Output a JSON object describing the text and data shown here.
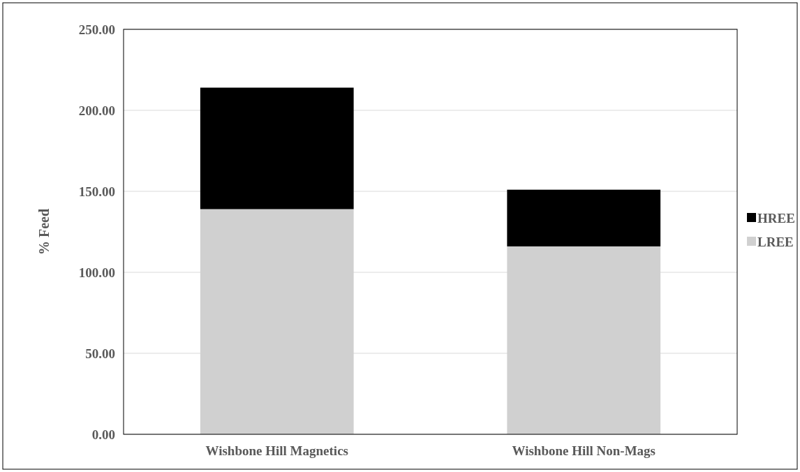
{
  "chart_data": {
    "type": "bar",
    "ylabel": "% Feed",
    "categories": [
      "Wishbone Hill Magnetics",
      "Wishbone Hill Non-Mags"
    ],
    "stacked": true,
    "series": [
      {
        "name": "LREE",
        "color": "#d0d0d0",
        "values": [
          139,
          116
        ]
      },
      {
        "name": "HREE",
        "color": "#000000",
        "values": [
          75,
          35
        ]
      }
    ],
    "ylim": [
      0,
      250
    ],
    "yticks": [
      {
        "value": 0,
        "label": "0.00"
      },
      {
        "value": 50,
        "label": "50.00"
      },
      {
        "value": 100,
        "label": "100.00"
      },
      {
        "value": 150,
        "label": "150.00"
      },
      {
        "value": 200,
        "label": "200.00"
      },
      {
        "value": 250,
        "label": "250.00"
      }
    ],
    "grid": "y",
    "legend": "right"
  }
}
